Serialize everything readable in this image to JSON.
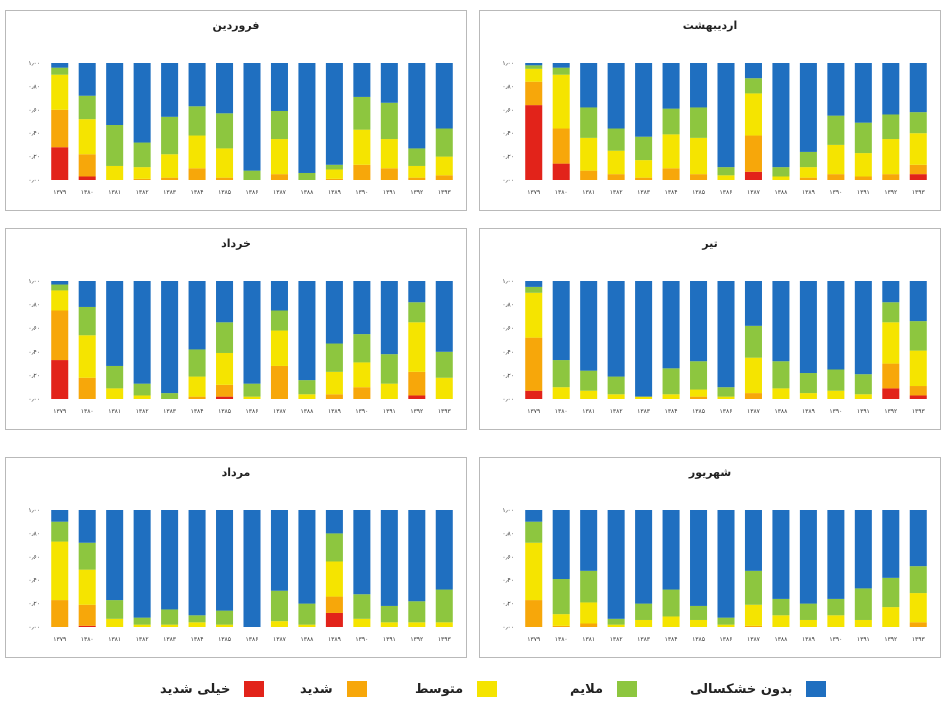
{
  "legend": [
    {
      "key": "severe_extreme",
      "label": "خیلی شدید",
      "color": "#e2231a"
    },
    {
      "key": "severe",
      "label": "شدید",
      "color": "#f7a70a"
    },
    {
      "key": "moderate",
      "label": "متوسط",
      "color": "#f5e400"
    },
    {
      "key": "mild",
      "label": "ملایم",
      "color": "#8dc63f"
    },
    {
      "key": "none",
      "label": "بدون خشکسالی",
      "color": "#1f6fc0"
    }
  ],
  "chart_data": [
    {
      "type": "bar",
      "stacked": true,
      "title": "فروردین",
      "categories": [
        "۱۳۷۹",
        "۱۳۸۰",
        "۱۳۸۱",
        "۱۳۸۲",
        "۱۳۸۳",
        "۱۳۸۴",
        "۱۳۸۵",
        "۱۳۸۶",
        "۱۳۸۷",
        "۱۳۸۸",
        "۱۳۸۹",
        "۱۳۹۰",
        "۱۳۹۱",
        "۱۳۹۲",
        "۱۳۹۳"
      ],
      "ytick_labels": [
        "۰٫۰۰",
        "۰٫۲۰",
        "۰٫۴۰",
        "۰٫۶۰",
        "۰٫۸۰",
        "۱٫۰۰"
      ],
      "ylim": [
        0,
        1
      ],
      "series": [
        {
          "name": "خیلی شدید",
          "values": [
            0.28,
            0.03,
            0,
            0,
            0,
            0,
            0,
            0,
            0,
            0,
            0,
            0,
            0,
            0,
            0
          ]
        },
        {
          "name": "شدید",
          "values": [
            0.32,
            0.19,
            0,
            0.01,
            0.02,
            0.1,
            0.02,
            0,
            0.05,
            0,
            0.01,
            0.13,
            0.1,
            0.02,
            0.04
          ]
        },
        {
          "name": "متوسط",
          "values": [
            0.3,
            0.3,
            0.12,
            0.1,
            0.2,
            0.28,
            0.25,
            0,
            0.3,
            0,
            0.08,
            0.3,
            0.25,
            0.1,
            0.16
          ]
        },
        {
          "name": "ملایم",
          "values": [
            0.06,
            0.2,
            0.35,
            0.21,
            0.32,
            0.25,
            0.3,
            0.08,
            0.24,
            0.06,
            0.04,
            0.28,
            0.31,
            0.15,
            0.24
          ]
        },
        {
          "name": "بدون خشکسالی",
          "values": [
            0.04,
            0.28,
            0.53,
            0.68,
            0.46,
            0.37,
            0.43,
            0.92,
            0.41,
            0.94,
            0.87,
            0.29,
            0.34,
            0.73,
            0.56
          ]
        }
      ]
    },
    {
      "type": "bar",
      "stacked": true,
      "title": "اردیبهشت",
      "categories": [
        "۱۳۷۹",
        "۱۳۸۰",
        "۱۳۸۱",
        "۱۳۸۲",
        "۱۳۸۳",
        "۱۳۸۴",
        "۱۳۸۵",
        "۱۳۸۶",
        "۱۳۸۷",
        "۱۳۸۸",
        "۱۳۸۹",
        "۱۳۹۰",
        "۱۳۹۱",
        "۱۳۹۲",
        "۱۳۹۳"
      ],
      "ytick_labels": [
        "۰٫۰۰",
        "۰٫۲۰",
        "۰٫۴۰",
        "۰٫۶۰",
        "۰٫۸۰",
        "۱٫۰۰"
      ],
      "ylim": [
        0,
        1
      ],
      "series": [
        {
          "name": "خیلی شدید",
          "values": [
            0.64,
            0.14,
            0,
            0,
            0,
            0,
            0,
            0,
            0.07,
            0,
            0,
            0,
            0,
            0,
            0.05
          ]
        },
        {
          "name": "شدید",
          "values": [
            0.2,
            0.3,
            0.08,
            0.05,
            0.02,
            0.1,
            0.05,
            0,
            0.31,
            0,
            0.02,
            0.05,
            0.03,
            0.05,
            0.08
          ]
        },
        {
          "name": "متوسط",
          "values": [
            0.11,
            0.46,
            0.28,
            0.2,
            0.15,
            0.29,
            0.31,
            0.04,
            0.36,
            0.03,
            0.09,
            0.25,
            0.2,
            0.3,
            0.27
          ]
        },
        {
          "name": "ملایم",
          "values": [
            0.03,
            0.06,
            0.26,
            0.19,
            0.2,
            0.22,
            0.26,
            0.07,
            0.13,
            0.08,
            0.13,
            0.25,
            0.26,
            0.21,
            0.18
          ]
        },
        {
          "name": "بدون خشکسالی",
          "values": [
            0.02,
            0.04,
            0.38,
            0.56,
            0.63,
            0.39,
            0.38,
            0.89,
            0.13,
            0.89,
            0.76,
            0.45,
            0.51,
            0.44,
            0.42
          ]
        }
      ]
    },
    {
      "type": "bar",
      "stacked": true,
      "title": "خرداد",
      "categories": [
        "۱۳۷۹",
        "۱۳۸۰",
        "۱۳۸۱",
        "۱۳۸۲",
        "۱۳۸۳",
        "۱۳۸۴",
        "۱۳۸۵",
        "۱۳۸۶",
        "۱۳۸۷",
        "۱۳۸۸",
        "۱۳۸۹",
        "۱۳۹۰",
        "۱۳۹۱",
        "۱۳۹۲",
        "۱۳۹۳"
      ],
      "ytick_labels": [
        "۰٫۰۰",
        "۰٫۲۰",
        "۰٫۴۰",
        "۰٫۶۰",
        "۰٫۸۰",
        "۱٫۰۰"
      ],
      "ylim": [
        0,
        1
      ],
      "series": [
        {
          "name": "خیلی شدید",
          "values": [
            0.33,
            0,
            0,
            0,
            0,
            0,
            0.02,
            0,
            0,
            0,
            0,
            0,
            0,
            0.03,
            0
          ]
        },
        {
          "name": "شدید",
          "values": [
            0.42,
            0.18,
            0,
            0,
            0,
            0.02,
            0.1,
            0,
            0.28,
            0,
            0.04,
            0.1,
            0,
            0.2,
            0
          ]
        },
        {
          "name": "متوسط",
          "values": [
            0.17,
            0.36,
            0.09,
            0.03,
            0,
            0.17,
            0.27,
            0.02,
            0.3,
            0.04,
            0.19,
            0.21,
            0.13,
            0.42,
            0.18
          ]
        },
        {
          "name": "ملایم",
          "values": [
            0.05,
            0.24,
            0.19,
            0.1,
            0.05,
            0.23,
            0.26,
            0.11,
            0.17,
            0.12,
            0.24,
            0.24,
            0.25,
            0.17,
            0.22
          ]
        },
        {
          "name": "بدون خشکسالی",
          "values": [
            0.03,
            0.22,
            0.72,
            0.87,
            0.95,
            0.58,
            0.35,
            0.87,
            0.25,
            0.84,
            0.53,
            0.45,
            0.62,
            0.18,
            0.6
          ]
        }
      ]
    },
    {
      "type": "bar",
      "stacked": true,
      "title": "تیر",
      "categories": [
        "۱۳۷۹",
        "۱۳۸۰",
        "۱۳۸۱",
        "۱۳۸۲",
        "۱۳۸۳",
        "۱۳۸۴",
        "۱۳۸۵",
        "۱۳۸۶",
        "۱۳۸۷",
        "۱۳۸۸",
        "۱۳۸۹",
        "۱۳۹۰",
        "۱۳۹۱",
        "۱۳۹۲",
        "۱۳۹۳"
      ],
      "ytick_labels": [
        "۰٫۰۰",
        "۰٫۲۰",
        "۰٫۴۰",
        "۰٫۶۰",
        "۰٫۸۰",
        "۱٫۰۰"
      ],
      "ylim": [
        0,
        1
      ],
      "series": [
        {
          "name": "خیلی شدید",
          "values": [
            0.07,
            0,
            0,
            0,
            0,
            0,
            0,
            0,
            0,
            0,
            0,
            0,
            0,
            0.09,
            0.03
          ]
        },
        {
          "name": "شدید",
          "values": [
            0.45,
            0,
            0,
            0,
            0,
            0,
            0.02,
            0,
            0.05,
            0,
            0,
            0,
            0,
            0.21,
            0.08
          ]
        },
        {
          "name": "متوسط",
          "values": [
            0.38,
            0.1,
            0.07,
            0.04,
            0.02,
            0.04,
            0.06,
            0.02,
            0.3,
            0.09,
            0.05,
            0.07,
            0.04,
            0.35,
            0.3
          ]
        },
        {
          "name": "ملایم",
          "values": [
            0.05,
            0.23,
            0.17,
            0.15,
            0,
            0.22,
            0.24,
            0.08,
            0.27,
            0.23,
            0.17,
            0.18,
            0.17,
            0.17,
            0.25
          ]
        },
        {
          "name": "بدون خشکسالی",
          "values": [
            0.05,
            0.67,
            0.76,
            0.81,
            0.98,
            0.74,
            0.68,
            0.9,
            0.38,
            0.68,
            0.78,
            0.75,
            0.79,
            0.18,
            0.34
          ]
        }
      ]
    },
    {
      "type": "bar",
      "stacked": true,
      "title": "مرداد",
      "categories": [
        "۱۳۷۹",
        "۱۳۸۰",
        "۱۳۸۱",
        "۱۳۸۲",
        "۱۳۸۳",
        "۱۳۸۴",
        "۱۳۸۵",
        "۱۳۸۶",
        "۱۳۸۷",
        "۱۳۸۸",
        "۱۳۸۹",
        "۱۳۹۰",
        "۱۳۹۱",
        "۱۳۹۲",
        "۱۳۹۳"
      ],
      "ytick_labels": [
        "۰٫۰۰",
        "۰٫۲۰",
        "۰٫۴۰",
        "۰٫۶۰",
        "۰٫۸۰",
        "۱٫۰۰"
      ],
      "ylim": [
        0,
        1
      ],
      "series": [
        {
          "name": "خیلی شدید",
          "values": [
            0,
            0.01,
            0,
            0,
            0,
            0,
            0,
            0,
            0,
            0,
            0.12,
            0,
            0,
            0,
            0
          ]
        },
        {
          "name": "شدید",
          "values": [
            0.23,
            0.18,
            0,
            0,
            0,
            0,
            0,
            0,
            0,
            0,
            0.14,
            0,
            0,
            0,
            0
          ]
        },
        {
          "name": "متوسط",
          "values": [
            0.5,
            0.3,
            0.07,
            0.02,
            0.02,
            0.04,
            0.02,
            0,
            0.05,
            0.02,
            0.3,
            0.07,
            0.04,
            0.04,
            0.04
          ]
        },
        {
          "name": "ملایم",
          "values": [
            0.17,
            0.23,
            0.16,
            0.06,
            0.13,
            0.06,
            0.12,
            0,
            0.26,
            0.18,
            0.24,
            0.21,
            0.14,
            0.18,
            0.28
          ]
        },
        {
          "name": "بدون خشکسالی",
          "values": [
            0.1,
            0.28,
            0.77,
            0.92,
            0.85,
            0.9,
            0.86,
            1.0,
            0.69,
            0.8,
            0.2,
            0.72,
            0.82,
            0.78,
            0.68
          ]
        }
      ]
    },
    {
      "type": "bar",
      "stacked": true,
      "title": "شهریور",
      "categories": [
        "۱۳۷۹",
        "۱۳۸۰",
        "۱۳۸۱",
        "۱۳۸۲",
        "۱۳۸۳",
        "۱۳۸۴",
        "۱۳۸۵",
        "۱۳۸۶",
        "۱۳۸۷",
        "۱۳۸۸",
        "۱۳۸۹",
        "۱۳۹۰",
        "۱۳۹۱",
        "۱۳۹۲",
        "۱۳۹۳"
      ],
      "ytick_labels": [
        "۰٫۰۰",
        "۰٫۲۰",
        "۰٫۴۰",
        "۰٫۶۰",
        "۰٫۸۰",
        "۱٫۰۰"
      ],
      "ylim": [
        0,
        1
      ],
      "series": [
        {
          "name": "خیلی شدید",
          "values": [
            0,
            0,
            0,
            0,
            0,
            0,
            0,
            0,
            0,
            0,
            0,
            0,
            0,
            0,
            0
          ]
        },
        {
          "name": "شدید",
          "values": [
            0.23,
            0.01,
            0.03,
            0,
            0,
            0,
            0,
            0,
            0.01,
            0,
            0,
            0,
            0,
            0,
            0.04
          ]
        },
        {
          "name": "متوسط",
          "values": [
            0.49,
            0.1,
            0.18,
            0.02,
            0.06,
            0.09,
            0.06,
            0.02,
            0.18,
            0.1,
            0.06,
            0.1,
            0.06,
            0.17,
            0.25
          ]
        },
        {
          "name": "ملایم",
          "values": [
            0.18,
            0.3,
            0.27,
            0.05,
            0.14,
            0.23,
            0.12,
            0.06,
            0.29,
            0.14,
            0.14,
            0.14,
            0.27,
            0.25,
            0.23
          ]
        },
        {
          "name": "بدون خشکسالی",
          "values": [
            0.1,
            0.59,
            0.52,
            0.93,
            0.8,
            0.68,
            0.82,
            0.92,
            0.52,
            0.76,
            0.8,
            0.76,
            0.67,
            0.58,
            0.48
          ]
        }
      ]
    }
  ]
}
